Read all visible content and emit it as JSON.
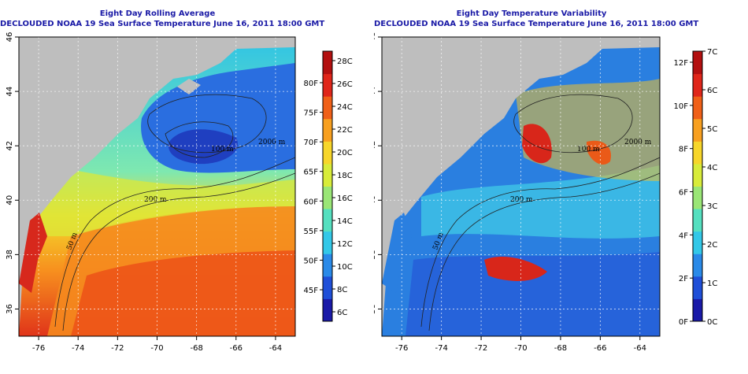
{
  "panels": {
    "left": {
      "title": "Eight Day Rolling Average",
      "subtitle": "DECLOUDED NOAA 19 Sea Surface Temperature June 16, 2011 18:00 GMT",
      "colorbar": {
        "colors": [
          "#1a1aa8",
          "#1f4fd8",
          "#2a8ae8",
          "#33c8e8",
          "#55e0c0",
          "#9ae676",
          "#d8ec3a",
          "#f7d62a",
          "#f8a020",
          "#f06018",
          "#e0261a",
          "#b31010"
        ],
        "f_labels": [
          "45F",
          "50F",
          "55F",
          "60F",
          "65F",
          "70F",
          "75F",
          "80F"
        ],
        "c_labels": [
          "6C",
          "8C",
          "10C",
          "12C",
          "14C",
          "16C",
          "18C",
          "20C",
          "22C",
          "24C",
          "26C",
          "28C"
        ]
      }
    },
    "right": {
      "title": "Eight Day Temperature Variability",
      "subtitle": "DECLOUDED NOAA 19 Sea Surface Temperature June 16, 2011 18:00 GMT",
      "colorbar": {
        "colors": [
          "#1a1aa8",
          "#1f4fd8",
          "#2a8ae8",
          "#33c8e8",
          "#55e0c0",
          "#9ae676",
          "#d8ec3a",
          "#f7d62a",
          "#f8a020",
          "#f06018",
          "#e0261a",
          "#b31010"
        ],
        "f_labels": [
          "0F",
          "2F",
          "4F",
          "6F",
          "8F",
          "10F",
          "12F"
        ],
        "c_labels": [
          "0C",
          "1C",
          "2C",
          "3C",
          "4C",
          "5C",
          "6C",
          "7C"
        ]
      }
    }
  },
  "map_axes": {
    "lon_ticks": [
      "-76",
      "-74",
      "-72",
      "-70",
      "-68",
      "-66",
      "-64"
    ],
    "lat_ticks": [
      "36",
      "38",
      "40",
      "42",
      "44",
      "46"
    ]
  },
  "contour_labels": [
    "200 m",
    "2000 m",
    "50 m",
    "100 m"
  ],
  "colors": {
    "title": "#1a1aa6",
    "land": "#bebebe",
    "warm": "#e0261a",
    "cool": "#1f4fd8"
  }
}
